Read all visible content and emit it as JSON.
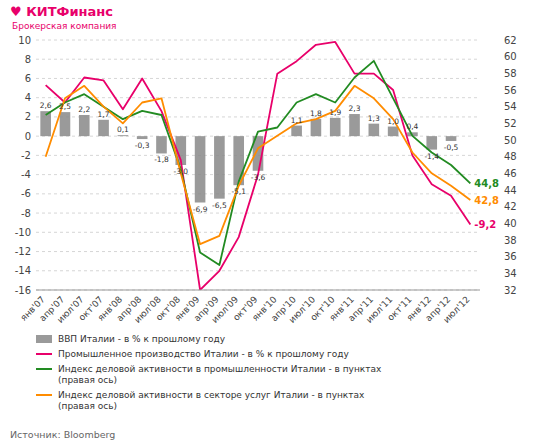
{
  "chart_data": {
    "type": "bar",
    "categories": [
      "янв'07",
      "апр'07",
      "июл'07",
      "окт'07",
      "янв'08",
      "апр'08",
      "июл'08",
      "окт'08",
      "янв'09",
      "апр'09",
      "июл'09",
      "окт'09",
      "янв'10",
      "апр'10",
      "июл'10",
      "окт'10",
      "янв'11",
      "апр'11",
      "июл'11",
      "окт'11",
      "янв'12",
      "апр'12",
      "июл'12"
    ],
    "series": [
      {
        "name": "ВВП Италии - в % к прошлому году",
        "type": "bar",
        "color": "#888888",
        "values": [
          2.6,
          2.5,
          2.2,
          1.7,
          0.1,
          -0.3,
          -1.8,
          -3.0,
          -6.9,
          -6.5,
          -5.1,
          -3.6,
          0.0,
          1.1,
          1.8,
          1.9,
          2.3,
          1.3,
          1.0,
          0.4,
          -1.4,
          -0.5,
          null
        ],
        "value_labels": [
          "2,6",
          "2,5",
          "2,2",
          "1,7",
          "0,1",
          "-0,3",
          "-1,8",
          "-3,0",
          "-6,9",
          "-6,5",
          "-5,1",
          "-3,6",
          null,
          "1,1",
          "1,8",
          "1,9",
          "2,3",
          "1,3",
          "1,0",
          "0,4",
          "-1,4",
          "-0,5",
          null
        ]
      },
      {
        "name": "Промышленное производство Италии - в % к прошлому году",
        "type": "line",
        "color": "#e8006a",
        "values": [
          5.3,
          3.5,
          6.1,
          5.8,
          2.8,
          6.0,
          2.6,
          -2.5,
          -16.0,
          -14.0,
          -10.5,
          -4.0,
          6.5,
          7.8,
          9.5,
          9.8,
          6.5,
          6.5,
          4.8,
          -2.0,
          -5.0,
          -6.2,
          -9.2
        ],
        "end_label": "-9,2"
      },
      {
        "name": "Индекс деловой активности в промышленности Италии - в пунктах\n(правая ось)",
        "type": "line",
        "color": "#228b22",
        "axis": "y2",
        "values": [
          53.0,
          54.5,
          55.5,
          54.0,
          52.5,
          53.5,
          53.0,
          46.5,
          36.5,
          35.0,
          45.0,
          51.0,
          51.5,
          54.5,
          55.5,
          54.5,
          57.5,
          59.5,
          55.0,
          50.5,
          48.5,
          47.0,
          44.8
        ],
        "end_label": "44,8"
      },
      {
        "name": "Индекс деловой активности в секторе услуг Италии - в пунктах\n(правая ось)",
        "type": "line",
        "color": "#ff8c00",
        "axis": "y2",
        "values": [
          48.0,
          55.0,
          56.5,
          54.0,
          52.0,
          54.5,
          55.0,
          46.0,
          37.5,
          38.5,
          44.5,
          49.0,
          50.5,
          52.0,
          52.5,
          53.5,
          56.5,
          55.0,
          52.5,
          48.5,
          46.0,
          44.5,
          42.8
        ],
        "end_label": "42,8"
      }
    ],
    "ylim": [
      -16,
      10
    ],
    "yticks": [
      -16,
      -14,
      -12,
      -10,
      -8,
      -6,
      -4,
      -2,
      0,
      2,
      4,
      6,
      8,
      10
    ],
    "y2lim": [
      32,
      62
    ],
    "y2ticks": [
      32,
      34,
      36,
      38,
      40,
      42,
      44,
      46,
      48,
      50,
      52,
      54,
      56,
      58,
      60,
      62
    ],
    "grid": true,
    "data_labels": true,
    "legend": "bottom",
    "annotations": [
      "♥ КИТФинанс",
      "Брокерская компания",
      "Источник: Bloomberg"
    ]
  }
}
